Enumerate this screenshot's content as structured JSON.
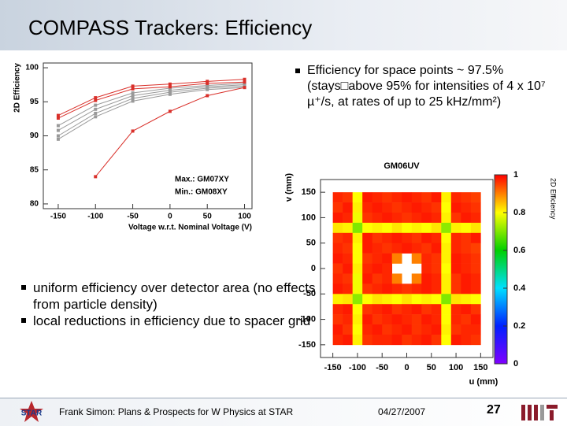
{
  "title": "COMPASS Trackers: Efficiency",
  "bullets_top": [
    "Efficiency for space points ~ 97.5% (stays□above 95% for intensities of 4 x 10⁷ µ⁺/s, at rates of up to 25 kHz/mm²)"
  ],
  "bullets_bottom": [
    "uniform efficiency over detector area (no effects from particle density)",
    "local reductions in efficiency due to spacer grid"
  ],
  "footer": {
    "logo_left": "STAR",
    "author": "Frank Simon: Plans & Prospects for W Physics at STAR",
    "date": "04/27/2007",
    "page": "27"
  },
  "chart_data": [
    {
      "type": "line",
      "ylabel": "2D Efficiency",
      "xlabel": "Voltage w.r.t. Nominal Voltage (V)",
      "annotations": [
        "Max.: GM07XY",
        "Min.: GM08XY"
      ],
      "xlim": [
        -170,
        110
      ],
      "xticks": [
        -150,
        -100,
        -50,
        0,
        50,
        100
      ],
      "ylim": [
        79.3,
        100.7
      ],
      "yticks": [
        80,
        85,
        90,
        95,
        100
      ],
      "grid": false,
      "series": [
        {
          "color": "#999999",
          "x": [
            -150,
            -100,
            -50,
            0,
            50,
            100
          ],
          "values": [
            91.5,
            94.5,
            96.3,
            97.0,
            97.4,
            97.7
          ]
        },
        {
          "color": "#999999",
          "x": [
            -150,
            -100,
            -50,
            0,
            50,
            100
          ],
          "values": [
            90.8,
            93.9,
            95.9,
            96.7,
            97.2,
            97.5
          ]
        },
        {
          "color": "#999999",
          "x": [
            -150,
            -100,
            -50,
            0,
            50,
            100
          ],
          "values": [
            90.0,
            93.3,
            95.5,
            96.4,
            97.0,
            97.3
          ]
        },
        {
          "color": "#999999",
          "x": [
            -150,
            -100,
            -50,
            0,
            50,
            100
          ],
          "values": [
            89.5,
            92.8,
            95.1,
            96.1,
            96.8,
            97.1
          ]
        },
        {
          "color": "#d9302a",
          "x": [
            -150,
            -100,
            -50,
            0,
            50,
            100
          ],
          "values": [
            92.6,
            95.2,
            96.9,
            97.2,
            97.7,
            97.9
          ]
        },
        {
          "color": "#d9302a",
          "x": [
            -150,
            -100,
            -50,
            0,
            50,
            100
          ],
          "values": [
            93.0,
            95.6,
            97.3,
            97.6,
            98.0,
            98.3
          ]
        },
        {
          "color": "#d9302a",
          "x": [
            -100,
            -50,
            0,
            50,
            100
          ],
          "values": [
            84.0,
            90.7,
            93.6,
            95.9,
            97.1
          ]
        }
      ]
    },
    {
      "type": "heatmap",
      "title": "GM06UV",
      "xlabel": "u (mm)",
      "ylabel": "v (mm)",
      "zlabel": "2D Efficiency",
      "xlim": [
        -175,
        175
      ],
      "xticks": [
        -150,
        -100,
        -50,
        0,
        50,
        100,
        150
      ],
      "ylim": [
        -175,
        175
      ],
      "yticks": [
        -150,
        -100,
        -50,
        0,
        50,
        100,
        150
      ],
      "zlim": [
        0,
        1
      ],
      "zticks": [
        0,
        0.2,
        0.4,
        0.6,
        0.8,
        1
      ],
      "x": [
        -140,
        -120,
        -100,
        -80,
        -60,
        -40,
        -20,
        0,
        20,
        40,
        60,
        80,
        100,
        120,
        140
      ],
      "y": [
        140,
        120,
        100,
        80,
        60,
        40,
        20,
        0,
        -20,
        -40,
        -60,
        -80,
        -100,
        -120,
        -140
      ],
      "values": [
        [
          0.97,
          0.96,
          0.8,
          0.98,
          0.97,
          0.96,
          0.97,
          0.98,
          0.97,
          0.96,
          0.98,
          0.81,
          0.97,
          0.96,
          0.95
        ],
        [
          0.96,
          0.98,
          0.81,
          0.97,
          0.98,
          0.97,
          0.96,
          0.97,
          0.98,
          0.97,
          0.96,
          0.8,
          0.98,
          0.97,
          0.96
        ],
        [
          0.98,
          0.97,
          0.79,
          0.96,
          0.97,
          0.98,
          0.97,
          0.96,
          0.97,
          0.98,
          0.97,
          0.81,
          0.96,
          0.98,
          0.97
        ],
        [
          0.82,
          0.81,
          0.7,
          0.8,
          0.81,
          0.8,
          0.82,
          0.8,
          0.81,
          0.8,
          0.82,
          0.71,
          0.81,
          0.8,
          0.82
        ],
        [
          0.96,
          0.97,
          0.81,
          0.98,
          0.96,
          0.97,
          0.98,
          0.97,
          0.96,
          0.98,
          0.97,
          0.8,
          0.97,
          0.96,
          0.98
        ],
        [
          0.97,
          0.96,
          0.8,
          0.98,
          0.97,
          0.96,
          0.97,
          0.98,
          0.97,
          0.96,
          0.98,
          0.81,
          0.97,
          0.96,
          0.95
        ],
        [
          0.98,
          0.97,
          0.8,
          0.96,
          0.97,
          0.98,
          0.9,
          null,
          0.9,
          0.97,
          0.96,
          0.81,
          0.98,
          0.97,
          0.96
        ],
        [
          0.96,
          0.98,
          0.81,
          0.97,
          0.98,
          0.97,
          null,
          null,
          null,
          0.97,
          0.96,
          0.8,
          0.98,
          0.97,
          0.96
        ],
        [
          0.97,
          0.96,
          0.79,
          0.98,
          0.96,
          0.97,
          0.9,
          null,
          0.9,
          0.98,
          0.97,
          0.81,
          0.96,
          0.98,
          0.97
        ],
        [
          0.98,
          0.97,
          0.79,
          0.96,
          0.97,
          0.98,
          0.97,
          0.96,
          0.97,
          0.98,
          0.97,
          0.81,
          0.96,
          0.98,
          0.97
        ],
        [
          0.81,
          0.82,
          0.71,
          0.8,
          0.82,
          0.81,
          0.8,
          0.82,
          0.8,
          0.81,
          0.8,
          0.7,
          0.82,
          0.81,
          0.8
        ],
        [
          0.97,
          0.98,
          0.8,
          0.96,
          0.97,
          0.98,
          0.96,
          0.97,
          0.98,
          0.96,
          0.97,
          0.8,
          0.97,
          0.98,
          0.96
        ],
        [
          0.96,
          0.97,
          0.81,
          0.98,
          0.96,
          0.97,
          0.98,
          0.97,
          0.96,
          0.98,
          0.97,
          0.8,
          0.97,
          0.96,
          0.98
        ],
        [
          0.98,
          0.96,
          0.8,
          0.97,
          0.98,
          0.96,
          0.97,
          0.98,
          0.96,
          0.97,
          0.98,
          0.81,
          0.96,
          0.97,
          0.97
        ],
        [
          0.97,
          0.98,
          0.81,
          0.96,
          0.97,
          0.97,
          0.98,
          0.96,
          0.97,
          0.98,
          0.96,
          0.8,
          0.98,
          0.97,
          0.96
        ]
      ]
    }
  ]
}
